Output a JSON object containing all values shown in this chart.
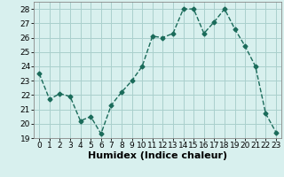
{
  "xlabel": "Humidex (Indice chaleur)",
  "x": [
    0,
    1,
    2,
    3,
    4,
    5,
    6,
    7,
    8,
    9,
    10,
    11,
    12,
    13,
    14,
    15,
    16,
    17,
    18,
    19,
    20,
    21,
    22,
    23
  ],
  "y": [
    23.5,
    21.7,
    22.1,
    21.9,
    20.2,
    20.5,
    19.3,
    21.3,
    22.2,
    23.0,
    24.0,
    26.1,
    26.0,
    26.3,
    28.0,
    28.0,
    26.3,
    27.1,
    28.0,
    26.6,
    25.4,
    24.0,
    20.7,
    19.4
  ],
  "line_color": "#1a6b5a",
  "marker": "D",
  "marker_size": 2.5,
  "bg_color": "#d8f0ee",
  "grid_color": "#aacfcc",
  "ylim": [
    19,
    28.5
  ],
  "yticks": [
    19,
    20,
    21,
    22,
    23,
    24,
    25,
    26,
    27,
    28
  ],
  "xlim": [
    -0.5,
    23.5
  ],
  "tick_fontsize": 6.5,
  "xlabel_fontsize": 8,
  "line_width": 1.0
}
